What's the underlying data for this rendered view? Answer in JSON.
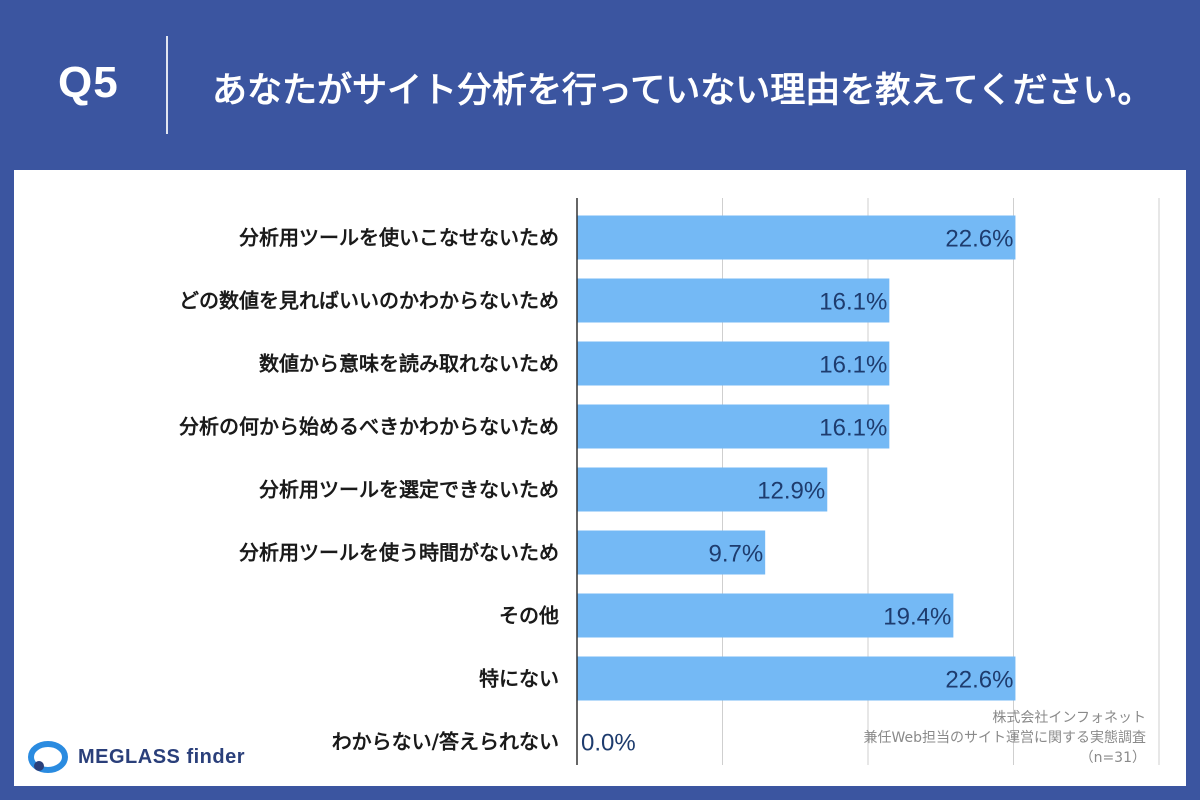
{
  "header": {
    "q_number": "Q5",
    "question": "あなたがサイト分析を行っていない理由を教えてください。"
  },
  "colors": {
    "background": "#3b55a0",
    "bar": "#74b9f5",
    "value_text": "#1e3c6e"
  },
  "chart_data": {
    "type": "bar",
    "orientation": "horizontal",
    "title": "あなたがサイト分析を行っていない理由を教えてください。",
    "categories": [
      "分析用ツールを使いこなせないため",
      "どの数値を見ればいいのかわからないため",
      "数値から意味を読み取れないため",
      "分析の何から始めるべきかわからないため",
      "分析用ツールを選定できないため",
      "分析用ツールを使う時間がないため",
      "その他",
      "特にない",
      "わからない/答えられない"
    ],
    "values": [
      22.6,
      16.1,
      16.1,
      16.1,
      12.9,
      9.7,
      19.4,
      22.6,
      0.0
    ],
    "value_labels": [
      "22.6%",
      "16.1%",
      "16.1%",
      "16.1%",
      "12.9%",
      "9.7%",
      "19.4%",
      "22.6%",
      "0.0%"
    ],
    "unit": "%",
    "xlim": [
      0,
      30
    ],
    "grid_step": 7.5,
    "grid": true
  },
  "source": {
    "company": "株式会社インフォネット",
    "survey": "兼任Web担当のサイト運営に関する実態調査",
    "sample": "（n=31）"
  },
  "logo": {
    "text": "MEGLASS finder"
  }
}
